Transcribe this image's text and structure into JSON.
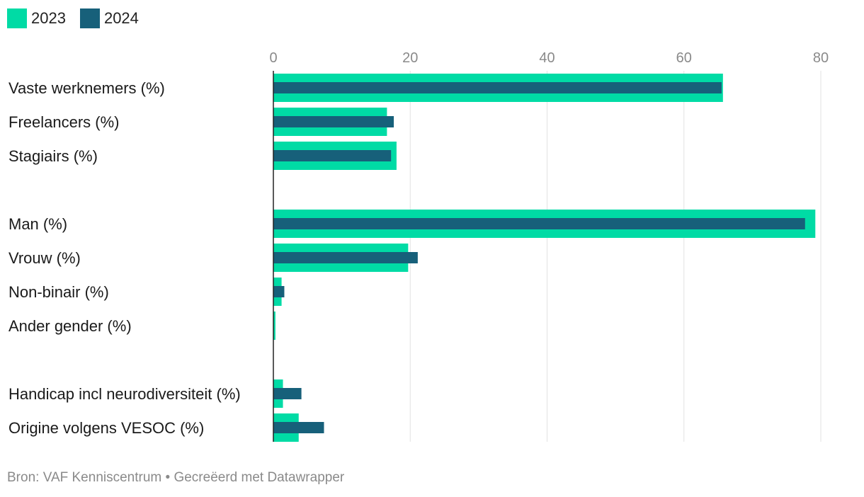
{
  "chart_data": {
    "type": "bar",
    "orientation": "horizontal",
    "xlim": [
      0,
      80
    ],
    "ticks": [
      0,
      20,
      40,
      60,
      80
    ],
    "legend_position": "top-left",
    "categories": [
      "Vaste werknemers (%)",
      "Freelancers (%)",
      "Stagiairs (%)",
      "",
      "Man (%)",
      "Vrouw (%)",
      "Non-binair (%)",
      "Ander gender (%)",
      "",
      "Handicap incl neurodiversiteit (%)",
      "Origine volgens VESOC (%)"
    ],
    "series": [
      {
        "name": "2023",
        "color": "#00dba5",
        "values": [
          65.7,
          16.6,
          18.0,
          null,
          79.2,
          19.7,
          1.2,
          0.3,
          null,
          1.4,
          3.7
        ]
      },
      {
        "name": "2024",
        "color": "#17607a",
        "values": [
          65.5,
          17.6,
          17.2,
          null,
          77.7,
          21.1,
          1.6,
          0.0,
          null,
          4.1,
          7.4
        ]
      }
    ]
  },
  "footer": {
    "text": "Bron: VAF Kenniscentrum • Gecreëerd met Datawrapper"
  }
}
